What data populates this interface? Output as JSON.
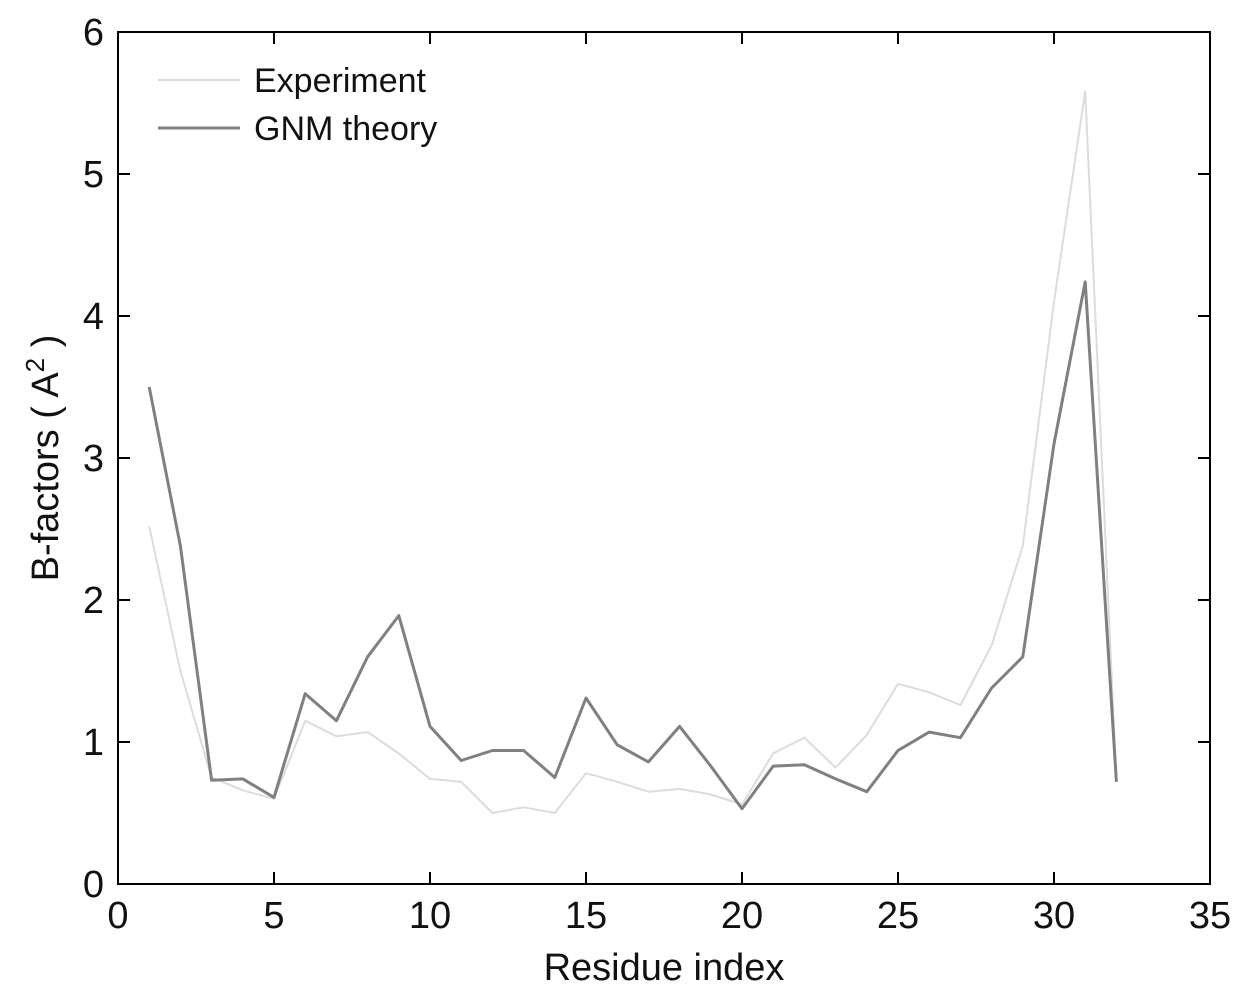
{
  "chart_data": {
    "type": "line",
    "xlabel": "Residue index",
    "ylabel_main": "B-factors ( A",
    "ylabel_sup": "2",
    "ylabel_close": " )",
    "xlim": [
      0,
      35
    ],
    "ylim": [
      0,
      6
    ],
    "xticks": [
      "0",
      "5",
      "10",
      "15",
      "20",
      "25",
      "30",
      "35"
    ],
    "yticks": [
      "0",
      "1",
      "2",
      "3",
      "4",
      "5",
      "6"
    ],
    "grid": false,
    "legend_position": "top-left",
    "x": [
      1,
      2,
      3,
      4,
      5,
      6,
      7,
      8,
      9,
      10,
      11,
      12,
      13,
      14,
      15,
      16,
      17,
      18,
      19,
      20,
      21,
      22,
      23,
      24,
      25,
      26,
      27,
      28,
      29,
      30,
      31,
      32
    ],
    "series": [
      {
        "name": "Experiment",
        "color": "#dcdcdc",
        "values": [
          2.52,
          1.5,
          0.75,
          0.66,
          0.6,
          1.15,
          1.04,
          1.07,
          0.92,
          0.74,
          0.72,
          0.5,
          0.54,
          0.5,
          0.78,
          0.72,
          0.65,
          0.67,
          0.63,
          0.56,
          0.92,
          1.03,
          0.82,
          1.05,
          1.41,
          1.35,
          1.26,
          1.68,
          2.38,
          4.1,
          5.58,
          0.72
        ]
      },
      {
        "name": "GNM theory",
        "color": "#808080",
        "values": [
          3.5,
          2.38,
          0.73,
          0.74,
          0.61,
          1.34,
          1.15,
          1.6,
          1.89,
          1.11,
          0.87,
          0.94,
          0.94,
          0.75,
          1.31,
          0.98,
          0.86,
          1.11,
          0.83,
          0.53,
          0.83,
          0.84,
          0.74,
          0.65,
          0.94,
          1.07,
          1.03,
          1.38,
          1.6,
          3.1,
          4.24,
          0.72
        ]
      }
    ]
  }
}
